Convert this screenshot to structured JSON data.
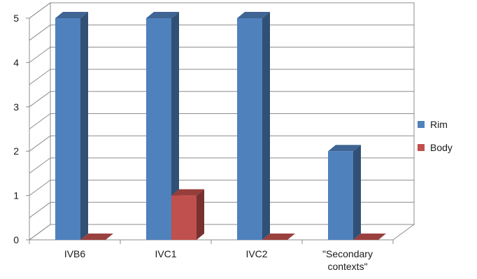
{
  "chart_data": {
    "type": "bar",
    "variant": "3d-clustered-column",
    "categories": [
      "IVB6",
      "IVC1",
      "IVC2",
      "\"Secondary contexts\""
    ],
    "series": [
      {
        "name": "Rim",
        "values": [
          5,
          5,
          5,
          2
        ],
        "color": "#4F81BD"
      },
      {
        "name": "Body",
        "values": [
          0,
          1,
          0,
          0
        ],
        "color": "#C0504D"
      }
    ],
    "ylim": [
      0,
      5
    ],
    "yticks": [
      0,
      1,
      2,
      3,
      4,
      5
    ],
    "grid": true,
    "legend": "right"
  }
}
